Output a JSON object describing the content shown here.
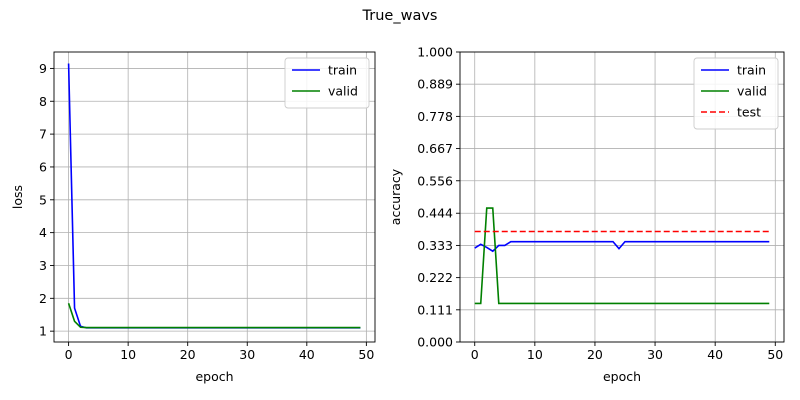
{
  "figure": {
    "title": "True_wavs"
  },
  "chart_data": [
    {
      "type": "line",
      "xlabel": "epoch",
      "ylabel": "loss",
      "xlim": [
        -2.45,
        51.45
      ],
      "ylim": [
        0.67,
        9.5
      ],
      "xticks": [
        0,
        10,
        20,
        30,
        40,
        50
      ],
      "yticks": [
        1,
        2,
        3,
        4,
        5,
        6,
        7,
        8,
        9
      ],
      "grid": true,
      "legend": "top-right",
      "series": [
        {
          "name": "train",
          "color": "#0000ff",
          "dashed": false,
          "x": [
            0,
            1,
            2,
            3,
            4,
            5,
            6,
            7,
            8,
            9,
            10,
            11,
            12,
            13,
            14,
            15,
            16,
            17,
            18,
            19,
            20,
            21,
            22,
            23,
            24,
            25,
            26,
            27,
            28,
            29,
            30,
            31,
            32,
            33,
            34,
            35,
            36,
            37,
            38,
            39,
            40,
            41,
            42,
            43,
            44,
            45,
            46,
            47,
            48,
            49
          ],
          "y": [
            9.15,
            1.7,
            1.15,
            1.1,
            1.1,
            1.1,
            1.1,
            1.1,
            1.1,
            1.1,
            1.1,
            1.1,
            1.1,
            1.1,
            1.1,
            1.1,
            1.1,
            1.1,
            1.1,
            1.1,
            1.1,
            1.1,
            1.1,
            1.1,
            1.1,
            1.1,
            1.1,
            1.1,
            1.1,
            1.1,
            1.1,
            1.1,
            1.1,
            1.1,
            1.1,
            1.1,
            1.1,
            1.1,
            1.1,
            1.1,
            1.1,
            1.1,
            1.1,
            1.1,
            1.1,
            1.1,
            1.1,
            1.1,
            1.1,
            1.1
          ]
        },
        {
          "name": "valid",
          "color": "#008000",
          "dashed": false,
          "x": [
            0,
            1,
            2,
            3,
            4,
            5,
            6,
            7,
            8,
            9,
            10,
            11,
            12,
            13,
            14,
            15,
            16,
            17,
            18,
            19,
            20,
            21,
            22,
            23,
            24,
            25,
            26,
            27,
            28,
            29,
            30,
            31,
            32,
            33,
            34,
            35,
            36,
            37,
            38,
            39,
            40,
            41,
            42,
            43,
            44,
            45,
            46,
            47,
            48,
            49
          ],
          "y": [
            1.85,
            1.3,
            1.12,
            1.11,
            1.11,
            1.11,
            1.11,
            1.11,
            1.11,
            1.11,
            1.11,
            1.11,
            1.11,
            1.11,
            1.11,
            1.11,
            1.11,
            1.11,
            1.11,
            1.11,
            1.11,
            1.11,
            1.11,
            1.11,
            1.11,
            1.11,
            1.11,
            1.11,
            1.11,
            1.11,
            1.11,
            1.11,
            1.11,
            1.11,
            1.11,
            1.11,
            1.11,
            1.11,
            1.11,
            1.11,
            1.11,
            1.11,
            1.11,
            1.11,
            1.11,
            1.11,
            1.11,
            1.11,
            1.11,
            1.11
          ]
        }
      ]
    },
    {
      "type": "line",
      "xlabel": "epoch",
      "ylabel": "accuracy",
      "xlim": [
        -2.45,
        51.45
      ],
      "ylim": [
        0,
        1
      ],
      "xticks": [
        0,
        10,
        20,
        30,
        40,
        50
      ],
      "yticks": [
        0.0,
        0.111,
        0.222,
        0.333,
        0.444,
        0.556,
        0.667,
        0.778,
        0.889,
        1.0
      ],
      "ytick_labels": [
        "0.000",
        "0.111",
        "0.222",
        "0.333",
        "0.444",
        "0.556",
        "0.667",
        "0.778",
        "0.889",
        "1.000"
      ],
      "grid": true,
      "legend": "top-right",
      "series": [
        {
          "name": "train",
          "color": "#0000ff",
          "dashed": false,
          "x": [
            0,
            1,
            2,
            3,
            4,
            5,
            6,
            7,
            8,
            9,
            10,
            11,
            12,
            13,
            14,
            15,
            16,
            17,
            18,
            19,
            20,
            21,
            22,
            23,
            24,
            25,
            26,
            27,
            28,
            29,
            30,
            31,
            32,
            33,
            34,
            35,
            36,
            37,
            38,
            39,
            40,
            41,
            42,
            43,
            44,
            45,
            46,
            47,
            48,
            49
          ],
          "y": [
            0.324,
            0.337,
            0.326,
            0.313,
            0.333,
            0.333,
            0.346,
            0.346,
            0.346,
            0.346,
            0.346,
            0.346,
            0.346,
            0.346,
            0.346,
            0.346,
            0.346,
            0.346,
            0.346,
            0.346,
            0.346,
            0.346,
            0.346,
            0.346,
            0.322,
            0.346,
            0.346,
            0.346,
            0.346,
            0.346,
            0.346,
            0.346,
            0.346,
            0.346,
            0.346,
            0.346,
            0.346,
            0.346,
            0.346,
            0.346,
            0.346,
            0.346,
            0.346,
            0.346,
            0.346,
            0.346,
            0.346,
            0.346,
            0.346,
            0.346
          ]
        },
        {
          "name": "valid",
          "color": "#008000",
          "dashed": false,
          "x": [
            0,
            1,
            2,
            3,
            4,
            5,
            6,
            7,
            8,
            9,
            10,
            11,
            12,
            13,
            14,
            15,
            16,
            17,
            18,
            19,
            20,
            21,
            22,
            23,
            24,
            25,
            26,
            27,
            28,
            29,
            30,
            31,
            32,
            33,
            34,
            35,
            36,
            37,
            38,
            39,
            40,
            41,
            42,
            43,
            44,
            45,
            46,
            47,
            48,
            49
          ],
          "y": [
            0.133,
            0.133,
            0.462,
            0.462,
            0.133,
            0.133,
            0.133,
            0.133,
            0.133,
            0.133,
            0.133,
            0.133,
            0.133,
            0.133,
            0.133,
            0.133,
            0.133,
            0.133,
            0.133,
            0.133,
            0.133,
            0.133,
            0.133,
            0.133,
            0.133,
            0.133,
            0.133,
            0.133,
            0.133,
            0.133,
            0.133,
            0.133,
            0.133,
            0.133,
            0.133,
            0.133,
            0.133,
            0.133,
            0.133,
            0.133,
            0.133,
            0.133,
            0.133,
            0.133,
            0.133,
            0.133,
            0.133,
            0.133,
            0.133,
            0.133
          ]
        },
        {
          "name": "test",
          "color": "#ff0000",
          "dashed": true,
          "x": [
            0,
            49
          ],
          "y": [
            0.381,
            0.381
          ]
        }
      ]
    }
  ]
}
